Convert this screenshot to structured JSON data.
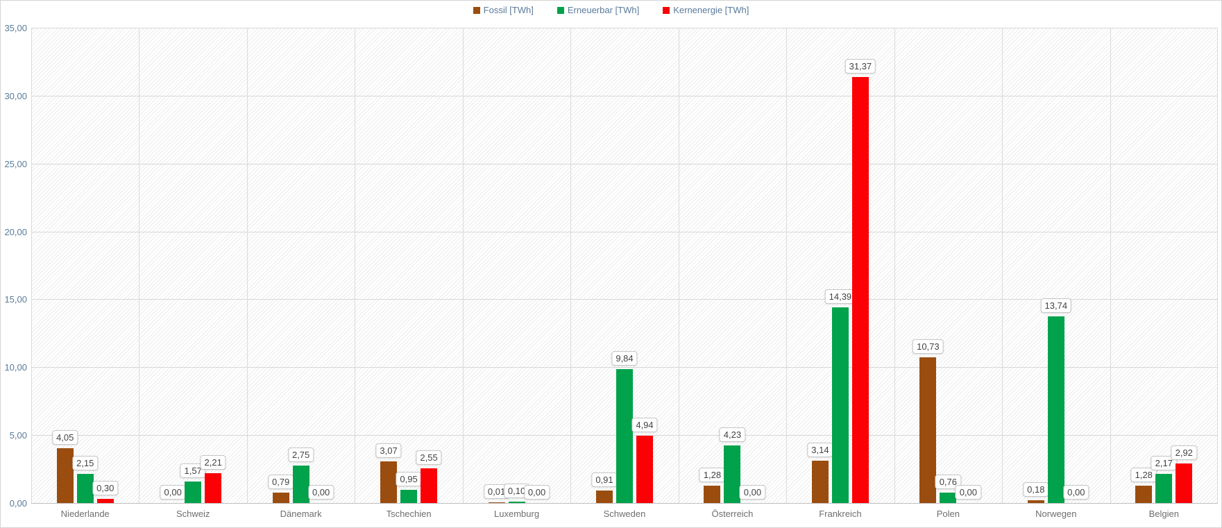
{
  "chart_data": {
    "type": "bar",
    "title": "",
    "xlabel": "",
    "ylabel": "",
    "ylim": [
      0,
      35
    ],
    "y_tick_step": 5,
    "y_ticks": [
      "35,00",
      "30,00",
      "25,00",
      "20,00",
      "15,00",
      "10,00",
      "5,00",
      "0,00"
    ],
    "grid": true,
    "legend_position": "top-center",
    "decimal_separator": ",",
    "categories": [
      "Niederlande",
      "Schweiz",
      "Dänemark",
      "Tschechien",
      "Luxemburg",
      "Schweden",
      "Österreich",
      "Frankreich",
      "Polen",
      "Norwegen",
      "Belgien"
    ],
    "series": [
      {
        "key": "fossil",
        "name": "Fossil [TWh]",
        "color": "#9a4d0f",
        "values": [
          4.05,
          0.0,
          0.79,
          3.07,
          0.01,
          0.91,
          1.28,
          3.14,
          10.73,
          0.18,
          1.28
        ]
      },
      {
        "key": "erneuerbar",
        "name": "Erneuerbar [TWh]",
        "color": "#00a24c",
        "values": [
          2.15,
          1.57,
          2.75,
          0.95,
          0.1,
          9.84,
          4.23,
          14.39,
          0.76,
          13.74,
          2.17
        ]
      },
      {
        "key": "kernenergie",
        "name": "Kernenergie [TWh]",
        "color": "#fb0004",
        "values": [
          0.3,
          2.21,
          0.0,
          2.55,
          0.0,
          4.94,
          0.0,
          31.37,
          0.0,
          0.0,
          2.92
        ]
      }
    ]
  },
  "style_colors": {
    "h_grid": "#d7d7d7",
    "v_grid": "#dadada",
    "axis_line": "#bfbfbf",
    "legend_text": "#5a7a99",
    "y_tick_text": "#5a7a99",
    "category_text": "#6e6e6e",
    "label_box_border": "#c6c6c6",
    "label_box_text": "#424242"
  }
}
